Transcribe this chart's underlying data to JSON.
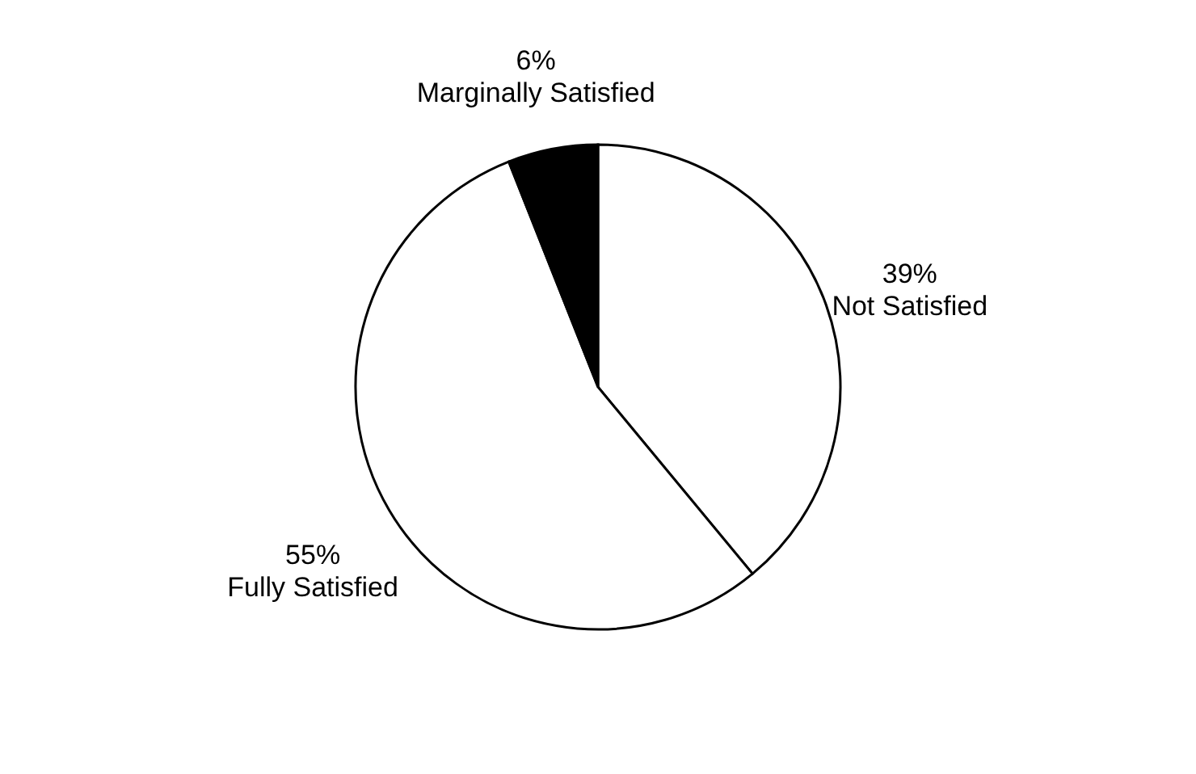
{
  "chart_data": {
    "type": "pie",
    "categories": [
      "Not Satisfied",
      "Fully Satisfied",
      "Marginally Satisfied"
    ],
    "values": [
      39,
      55,
      6
    ],
    "value_labels": [
      "39%",
      "55%",
      "6%"
    ],
    "colors": [
      "#ffffff",
      "#ffffff",
      "#000000"
    ]
  }
}
